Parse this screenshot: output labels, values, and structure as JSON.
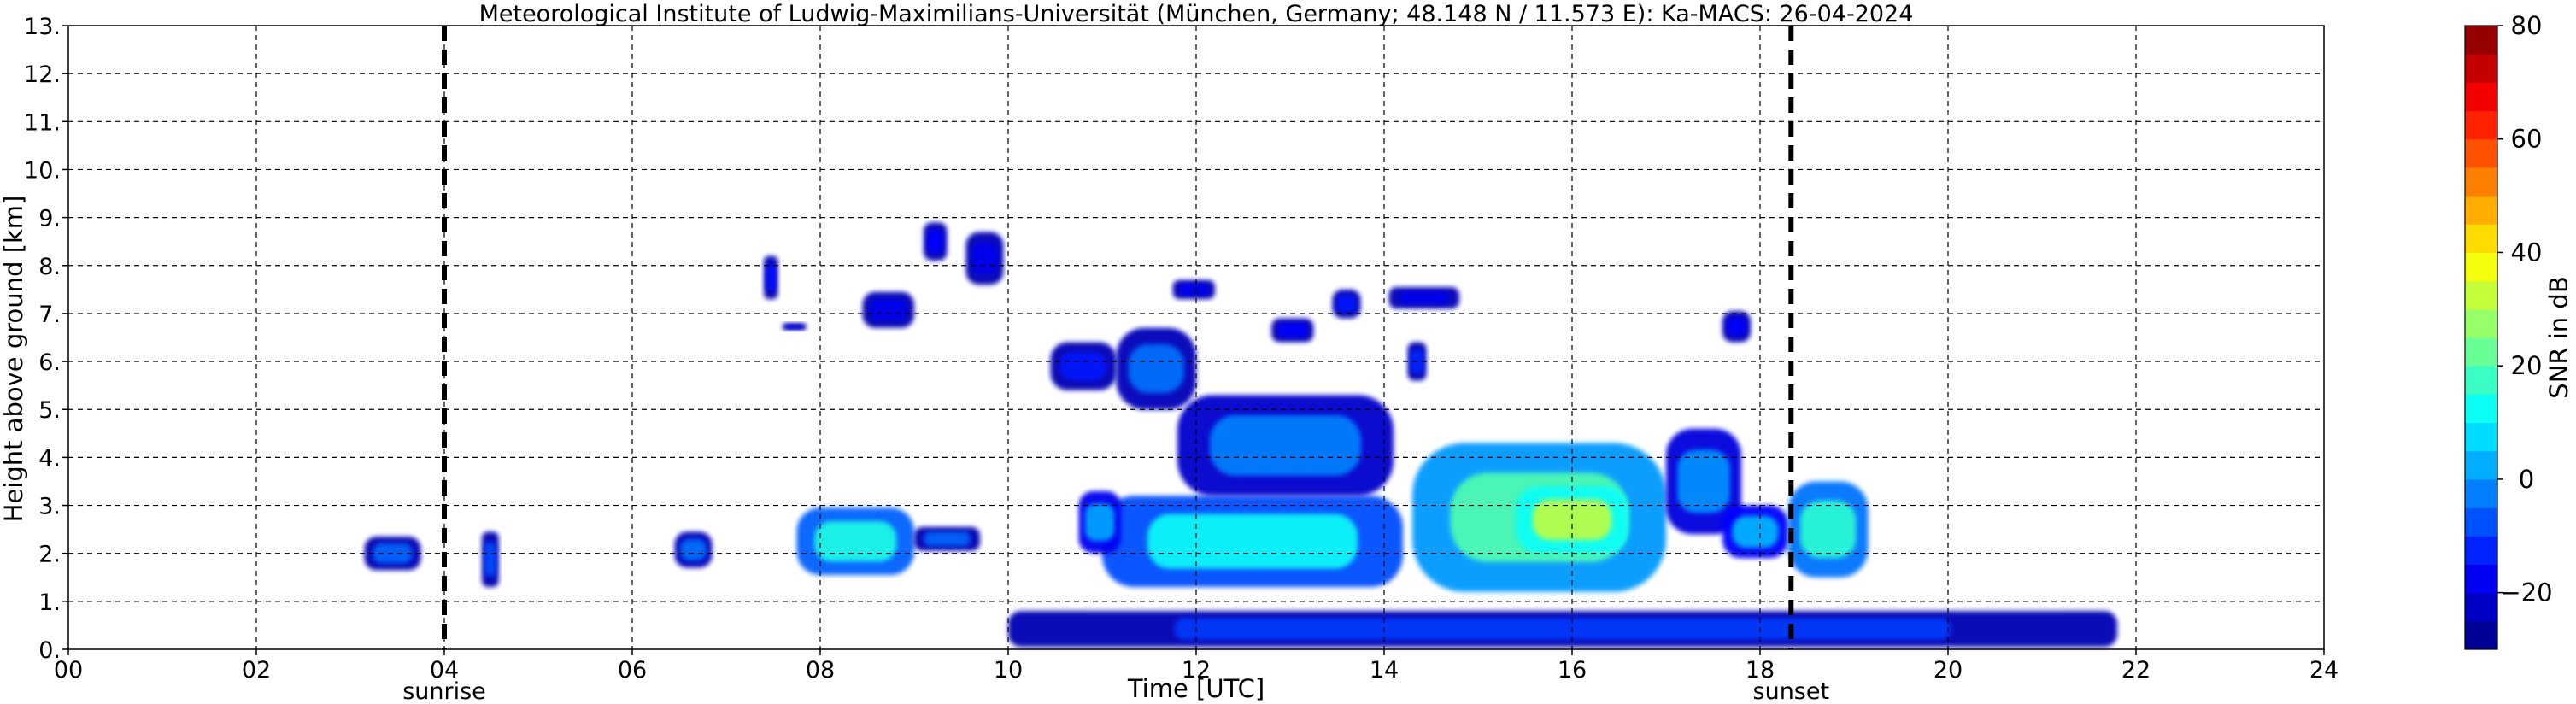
{
  "chart_data": {
    "type": "heatmap",
    "title": "Meteorological Institute of Ludwig-Maximilians-Universität (München, Germany; 48.148 N / 11.573 E):    Ka-MACS: 26-04-2024",
    "xlabel": "Time [UTC]",
    "ylabel": "Height above ground [km]",
    "xlim": [
      0,
      24
    ],
    "ylim": [
      0,
      13
    ],
    "xticks": [
      0,
      2,
      4,
      6,
      8,
      10,
      12,
      14,
      16,
      18,
      20,
      22,
      24
    ],
    "xtick_labels": [
      "00",
      "02",
      "04",
      "06",
      "08",
      "10",
      "12",
      "14",
      "16",
      "18",
      "20",
      "22",
      "24"
    ],
    "yticks": [
      0,
      1,
      2,
      3,
      4,
      5,
      6,
      7,
      8,
      9,
      10,
      11,
      12,
      13
    ],
    "ytick_labels": [
      "0.",
      "1.",
      "2.",
      "3.",
      "4.",
      "5.",
      "6.",
      "7.",
      "8.",
      "9.",
      "10.",
      "11.",
      "12.",
      "13."
    ],
    "grid": true,
    "colormap": "jet",
    "colorbar": {
      "label": "SNR in dB",
      "range": [
        -30,
        80
      ],
      "ticks": [
        -20,
        0,
        20,
        40,
        60,
        80
      ],
      "tick_labels": [
        "−20",
        "0",
        "20",
        "40",
        "60",
        "80"
      ],
      "bands": 22
    },
    "annotations": [
      {
        "text": "sunrise",
        "x": 4.0
      },
      {
        "text": "sunset",
        "x": 18.33
      }
    ],
    "echo_regions": [
      {
        "t0": 3.15,
        "t1": 3.75,
        "h0": 1.65,
        "h1": 2.35,
        "snr": -5
      },
      {
        "t0": 4.4,
        "t1": 4.58,
        "h0": 1.3,
        "h1": 2.45,
        "snr": -8
      },
      {
        "t0": 6.45,
        "t1": 6.85,
        "h0": 1.7,
        "h1": 2.45,
        "snr": -4
      },
      {
        "t0": 7.4,
        "t1": 7.55,
        "h0": 7.3,
        "h1": 8.2,
        "snr": -15
      },
      {
        "t0": 7.6,
        "t1": 7.85,
        "h0": 6.65,
        "h1": 6.8,
        "snr": -18
      },
      {
        "t0": 7.75,
        "t1": 9.0,
        "h0": 1.55,
        "h1": 2.95,
        "snr": 14
      },
      {
        "t0": 9.0,
        "t1": 9.7,
        "h0": 2.05,
        "h1": 2.55,
        "snr": -5
      },
      {
        "t0": 8.45,
        "t1": 9.0,
        "h0": 6.7,
        "h1": 7.45,
        "snr": -18
      },
      {
        "t0": 9.1,
        "t1": 9.35,
        "h0": 8.1,
        "h1": 8.9,
        "snr": -16
      },
      {
        "t0": 9.55,
        "t1": 9.95,
        "h0": 7.6,
        "h1": 8.7,
        "snr": -18
      },
      {
        "t0": 10.45,
        "t1": 11.15,
        "h0": 5.4,
        "h1": 6.4,
        "snr": -14
      },
      {
        "t0": 11.15,
        "t1": 12.0,
        "h0": 5.0,
        "h1": 6.7,
        "snr": -4
      },
      {
        "t0": 11.75,
        "t1": 12.2,
        "h0": 7.3,
        "h1": 7.7,
        "snr": -18
      },
      {
        "t0": 12.8,
        "t1": 13.25,
        "h0": 6.4,
        "h1": 6.9,
        "snr": -16
      },
      {
        "t0": 13.45,
        "t1": 13.75,
        "h0": 6.9,
        "h1": 7.5,
        "snr": -14
      },
      {
        "t0": 14.05,
        "t1": 14.8,
        "h0": 7.1,
        "h1": 7.55,
        "snr": -18
      },
      {
        "t0": 14.25,
        "t1": 14.45,
        "h0": 5.6,
        "h1": 6.4,
        "snr": -12
      },
      {
        "t0": 11.0,
        "t1": 14.2,
        "h0": 1.3,
        "h1": 3.2,
        "snr": 12
      },
      {
        "t0": 11.8,
        "t1": 14.1,
        "h0": 3.2,
        "h1": 5.3,
        "snr": -2
      },
      {
        "t0": 10.75,
        "t1": 11.2,
        "h0": 2.0,
        "h1": 3.3,
        "snr": 2
      },
      {
        "t0": 14.3,
        "t1": 17.0,
        "h0": 1.2,
        "h1": 4.3,
        "snr": 20
      },
      {
        "t0": 15.4,
        "t1": 16.6,
        "h0": 2.0,
        "h1": 3.4,
        "snr": 32
      },
      {
        "t0": 17.0,
        "t1": 17.8,
        "h0": 2.4,
        "h1": 4.6,
        "snr": 0
      },
      {
        "t0": 17.6,
        "t1": 18.3,
        "h0": 1.9,
        "h1": 3.0,
        "snr": 4
      },
      {
        "t0": 18.3,
        "t1": 19.15,
        "h0": 1.5,
        "h1": 3.5,
        "snr": 16
      },
      {
        "t0": 17.6,
        "t1": 17.9,
        "h0": 6.4,
        "h1": 7.05,
        "snr": -16
      },
      {
        "t0": 10.0,
        "t1": 21.8,
        "h0": 0.05,
        "h1": 0.8,
        "snr": -10
      }
    ]
  }
}
